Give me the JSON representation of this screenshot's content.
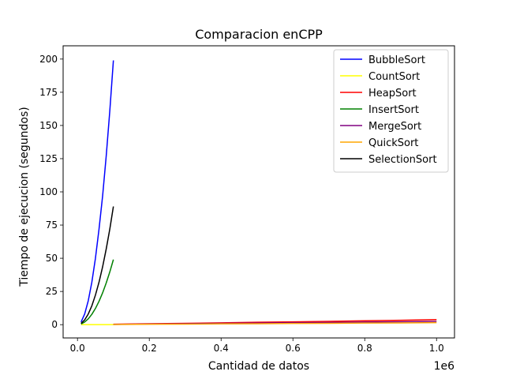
{
  "chart_data": {
    "type": "line",
    "title": "Comparacion enCPP",
    "xlabel": "Cantidad de datos",
    "ylabel": "Tiempo de ejecucion (segundos)",
    "x_offset_label": "1e6",
    "xlim": [
      -40000,
      1050000
    ],
    "ylim": [
      -10,
      210
    ],
    "xticks": [
      0,
      200000,
      400000,
      600000,
      800000,
      1000000
    ],
    "xtick_labels": [
      "0.0",
      "0.2",
      "0.4",
      "0.6",
      "0.8",
      "1.0"
    ],
    "yticks": [
      0,
      25,
      50,
      75,
      100,
      125,
      150,
      175,
      200
    ],
    "ytick_labels": [
      "0",
      "25",
      "50",
      "75",
      "100",
      "125",
      "150",
      "175",
      "200"
    ],
    "legend_position": "top-right",
    "series": [
      {
        "name": "BubbleSort",
        "color": "#0000ff",
        "x": [
          10000,
          20000,
          30000,
          40000,
          50000,
          60000,
          70000,
          80000,
          90000,
          100000
        ],
        "y": [
          2,
          8,
          18,
          32,
          50,
          72,
          97,
          127,
          161,
          199
        ]
      },
      {
        "name": "CountSort",
        "color": "#ffff00",
        "x": [
          10000,
          20000,
          30000,
          40000,
          50000,
          60000,
          70000,
          80000,
          90000,
          100000
        ],
        "y": [
          0,
          0,
          0,
          0,
          0,
          0,
          0,
          0,
          0,
          0
        ]
      },
      {
        "name": "HeapSort",
        "color": "#ff0000",
        "x": [
          100000,
          200000,
          300000,
          400000,
          500000,
          600000,
          700000,
          800000,
          900000,
          1000000
        ],
        "y": [
          0.3,
          0.7,
          1.0,
          1.4,
          1.8,
          2.1,
          2.5,
          2.9,
          3.3,
          3.8
        ]
      },
      {
        "name": "InsertSort",
        "color": "#008000",
        "x": [
          10000,
          20000,
          30000,
          40000,
          50000,
          60000,
          70000,
          80000,
          90000,
          100000
        ],
        "y": [
          0.5,
          2,
          4.4,
          7.8,
          12.2,
          17.6,
          24,
          31.4,
          39.7,
          49
        ]
      },
      {
        "name": "MergeSort",
        "color": "#800080",
        "x": [
          100000,
          200000,
          300000,
          400000,
          500000,
          600000,
          700000,
          800000,
          900000,
          1000000
        ],
        "y": [
          0.2,
          0.5,
          0.7,
          1.0,
          1.2,
          1.5,
          1.7,
          2.0,
          2.2,
          2.5
        ]
      },
      {
        "name": "QuickSort",
        "color": "#ffa500",
        "x": [
          100000,
          200000,
          300000,
          400000,
          500000,
          600000,
          700000,
          800000,
          900000,
          1000000
        ],
        "y": [
          0.1,
          0.3,
          0.4,
          0.6,
          0.7,
          0.9,
          1.0,
          1.2,
          1.3,
          1.5
        ]
      },
      {
        "name": "SelectionSort",
        "color": "#000000",
        "x": [
          10000,
          20000,
          30000,
          40000,
          50000,
          60000,
          70000,
          80000,
          90000,
          100000
        ],
        "y": [
          1,
          3.6,
          8,
          14.2,
          22.3,
          32,
          43.6,
          57,
          72,
          89
        ]
      }
    ]
  }
}
